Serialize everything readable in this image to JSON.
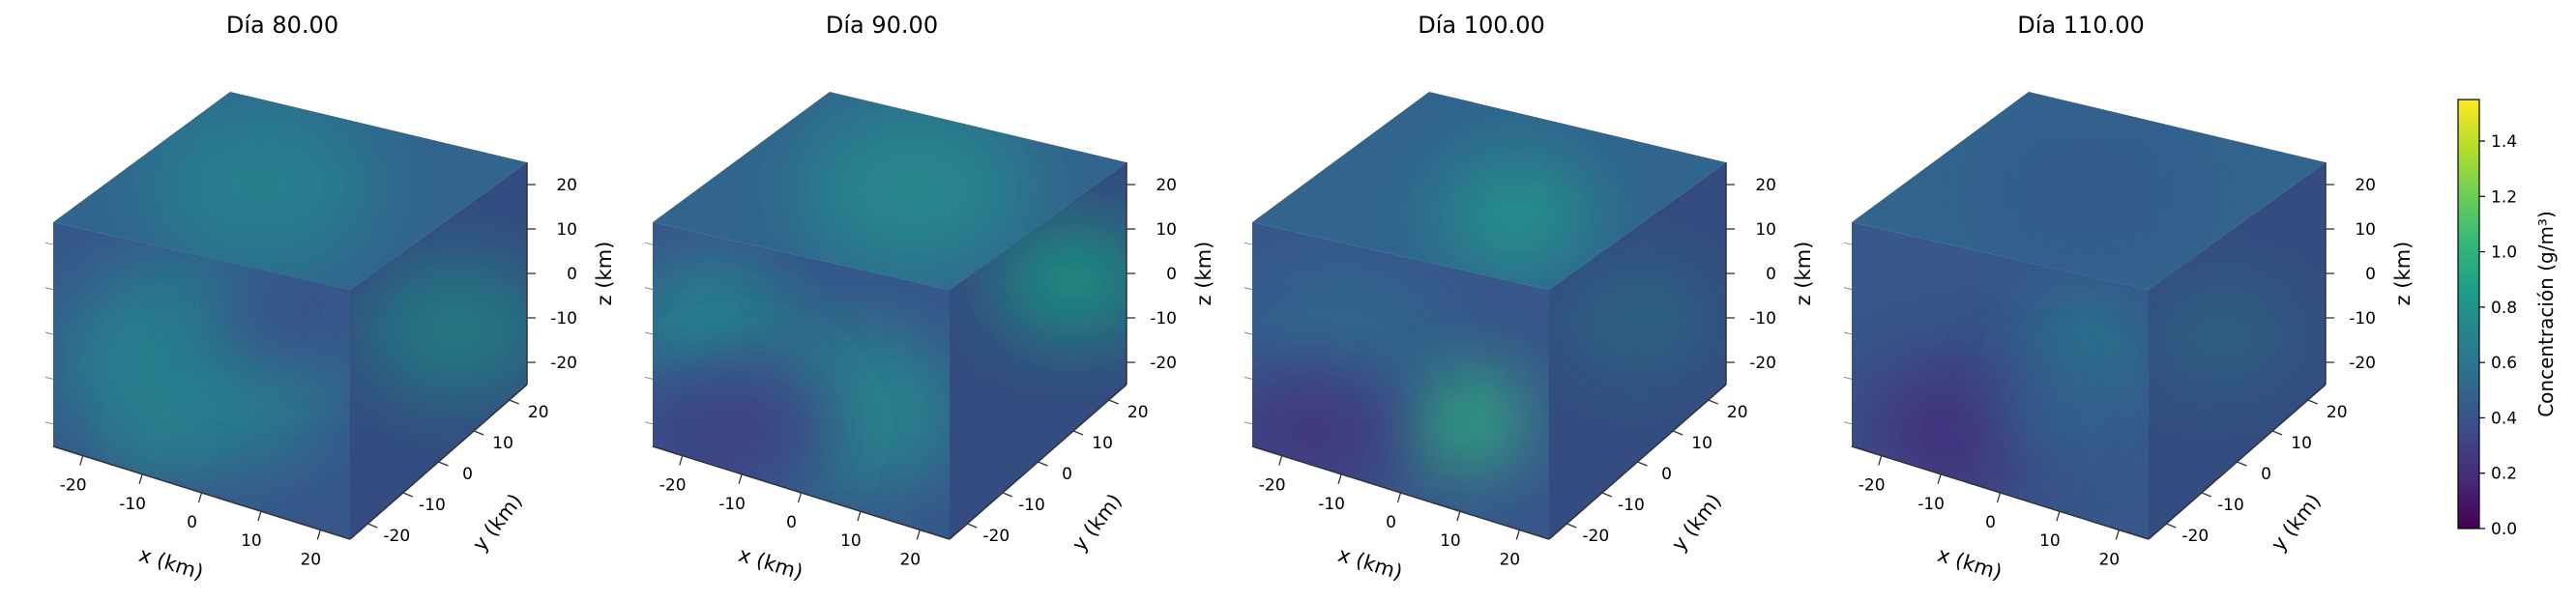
{
  "chart_data": [
    {
      "type": "heatmap",
      "title": "Día 80.00",
      "xlabel": "x (km)",
      "ylabel": "y (km)",
      "zlabel": "z (km)",
      "xticks": [
        -20,
        -10,
        0,
        10,
        20
      ],
      "yticks": [
        -20,
        -10,
        0,
        10,
        20
      ],
      "zticks": [
        -20,
        -10,
        0,
        10,
        20
      ],
      "xlim": [
        -25,
        25
      ],
      "ylim": [
        -25,
        25
      ],
      "zlim": [
        -25,
        25
      ],
      "blobs": [
        {
          "face": "front",
          "u": 0.35,
          "v": 0.22,
          "r": 0.1,
          "value": 0.95
        },
        {
          "face": "front",
          "u": 0.5,
          "v": 0.55,
          "r": 0.45,
          "value": 0.68
        },
        {
          "face": "front",
          "u": 0.8,
          "v": 0.85,
          "r": 0.25,
          "value": 0.38
        },
        {
          "face": "top",
          "u": 0.4,
          "v": 0.5,
          "r": 0.45,
          "value": 0.68
        },
        {
          "face": "side",
          "u": 0.6,
          "v": 0.5,
          "r": 0.3,
          "value": 0.7
        }
      ]
    },
    {
      "type": "heatmap",
      "title": "Día 90.00",
      "xlabel": "x (km)",
      "ylabel": "y (km)",
      "zlabel": "z (km)",
      "xticks": [
        -20,
        -10,
        0,
        10,
        20
      ],
      "yticks": [
        -20,
        -10,
        0,
        10,
        20
      ],
      "zticks": [
        -20,
        -10,
        0,
        10,
        20
      ],
      "xlim": [
        -25,
        25
      ],
      "ylim": [
        -25,
        25
      ],
      "zlim": [
        -25,
        25
      ],
      "blobs": [
        {
          "face": "front",
          "u": 0.2,
          "v": 0.6,
          "r": 0.25,
          "value": 0.75
        },
        {
          "face": "front",
          "u": 0.65,
          "v": 0.4,
          "r": 0.35,
          "value": 0.72
        },
        {
          "face": "front",
          "u": 0.3,
          "v": 0.2,
          "r": 0.3,
          "value": 0.3
        },
        {
          "face": "top",
          "u": 0.55,
          "v": 0.55,
          "r": 0.45,
          "value": 0.72
        },
        {
          "face": "side",
          "u": 0.7,
          "v": 0.65,
          "r": 0.25,
          "value": 0.85
        }
      ]
    },
    {
      "type": "heatmap",
      "title": "Día 100.00",
      "xlabel": "x (km)",
      "ylabel": "y (km)",
      "zlabel": "z (km)",
      "xticks": [
        -20,
        -10,
        0,
        10,
        20
      ],
      "yticks": [
        -20,
        -10,
        0,
        10,
        20
      ],
      "zticks": [
        -20,
        -10,
        0,
        10,
        20
      ],
      "xlim": [
        -25,
        25
      ],
      "ylim": [
        -25,
        25
      ],
      "zlim": [
        -25,
        25
      ],
      "blobs": [
        {
          "face": "front",
          "u": 0.7,
          "v": 0.38,
          "r": 0.2,
          "value": 1.0
        },
        {
          "face": "front",
          "u": 0.3,
          "v": 0.55,
          "r": 0.3,
          "value": 0.55
        },
        {
          "face": "front",
          "u": 0.2,
          "v": 0.15,
          "r": 0.3,
          "value": 0.25
        },
        {
          "face": "top",
          "u": 0.65,
          "v": 0.4,
          "r": 0.3,
          "value": 0.8
        },
        {
          "face": "side",
          "u": 0.5,
          "v": 0.6,
          "r": 0.25,
          "value": 0.55
        }
      ]
    },
    {
      "type": "heatmap",
      "title": "Día 110.00",
      "xlabel": "x (km)",
      "ylabel": "y (km)",
      "zlabel": "z (km)",
      "xticks": [
        -20,
        -10,
        0,
        10,
        20
      ],
      "yticks": [
        -20,
        -10,
        0,
        10,
        20
      ],
      "zticks": [
        -20,
        -10,
        0,
        10,
        20
      ],
      "xlim": [
        -25,
        25
      ],
      "ylim": [
        -25,
        25
      ],
      "zlim": [
        -25,
        25
      ],
      "blobs": [
        {
          "face": "front",
          "u": 0.78,
          "v": 0.7,
          "r": 0.2,
          "value": 0.65
        },
        {
          "face": "front",
          "u": 0.35,
          "v": 0.2,
          "r": 0.3,
          "value": 0.22
        },
        {
          "face": "front",
          "u": 0.7,
          "v": 0.4,
          "r": 0.2,
          "value": 0.5
        },
        {
          "face": "top",
          "u": 0.5,
          "v": 0.5,
          "r": 0.45,
          "value": 0.45
        },
        {
          "face": "side",
          "u": 0.4,
          "v": 0.6,
          "r": 0.25,
          "value": 0.52
        }
      ]
    }
  ],
  "colorbar": {
    "label": "Concentración (g/m³)",
    "ticks": [
      "0.0",
      "0.2",
      "0.4",
      "0.6",
      "0.8",
      "1.0",
      "1.2",
      "1.4"
    ],
    "min": 0.0,
    "max": 1.55,
    "colormap": [
      "#440154",
      "#482878",
      "#3e4989",
      "#31688e",
      "#26828e",
      "#1f9e89",
      "#35b779",
      "#6ece58",
      "#b5de2b",
      "#fde725"
    ]
  }
}
